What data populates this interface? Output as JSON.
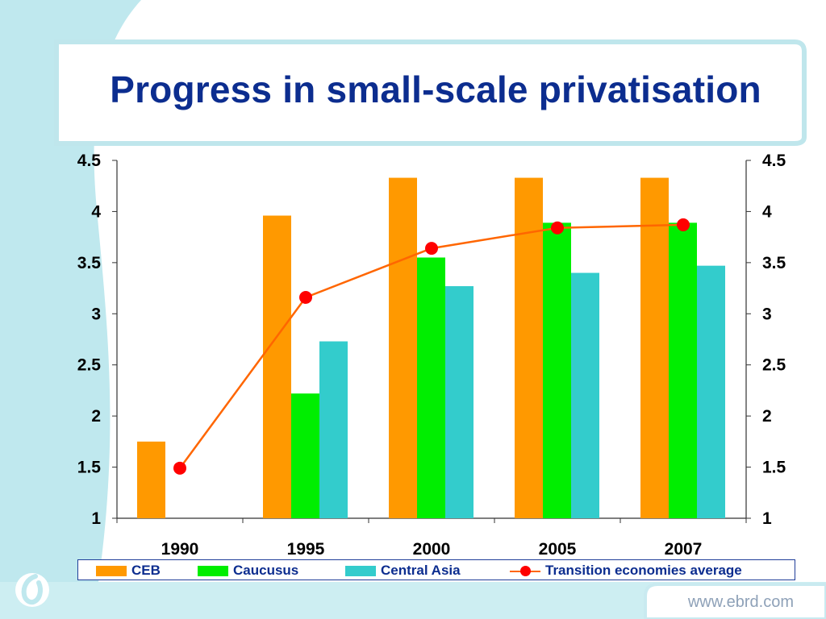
{
  "slide": {
    "title": "Progress in small-scale privatisation",
    "footer_url": "www.ebrd.com"
  },
  "colors": {
    "ceb": "#ff9900",
    "caucusus": "#00ee00",
    "central_asia": "#33cccc",
    "average_line": "#ff6600",
    "average_marker": "#ff0000",
    "title": "#0c2d8f"
  },
  "chart_data": {
    "type": "bar",
    "title": "",
    "categories": [
      "1990",
      "1995",
      "2000",
      "2005",
      "2007"
    ],
    "ylim": [
      1,
      4.5
    ],
    "yticks": [
      "1",
      "1.5",
      "2",
      "2.5",
      "3",
      "3.5",
      "4",
      "4.5"
    ],
    "secondary_yticks": [
      "1",
      "1.5",
      "2",
      "2.5",
      "3",
      "3.5",
      "4",
      "4.5"
    ],
    "series": [
      {
        "name": "CEB",
        "type": "bar",
        "values": [
          1.75,
          3.96,
          4.33,
          4.33,
          4.33
        ]
      },
      {
        "name": "Caucusus",
        "type": "bar",
        "values": [
          null,
          2.22,
          3.55,
          3.89,
          3.89
        ]
      },
      {
        "name": "Central Asia",
        "type": "bar",
        "values": [
          null,
          2.73,
          3.27,
          3.4,
          3.47
        ]
      },
      {
        "name": "Transition economies average",
        "type": "line",
        "values": [
          1.49,
          3.16,
          3.64,
          3.84,
          3.87
        ]
      }
    ],
    "grid": false,
    "legend_position": "bottom"
  }
}
